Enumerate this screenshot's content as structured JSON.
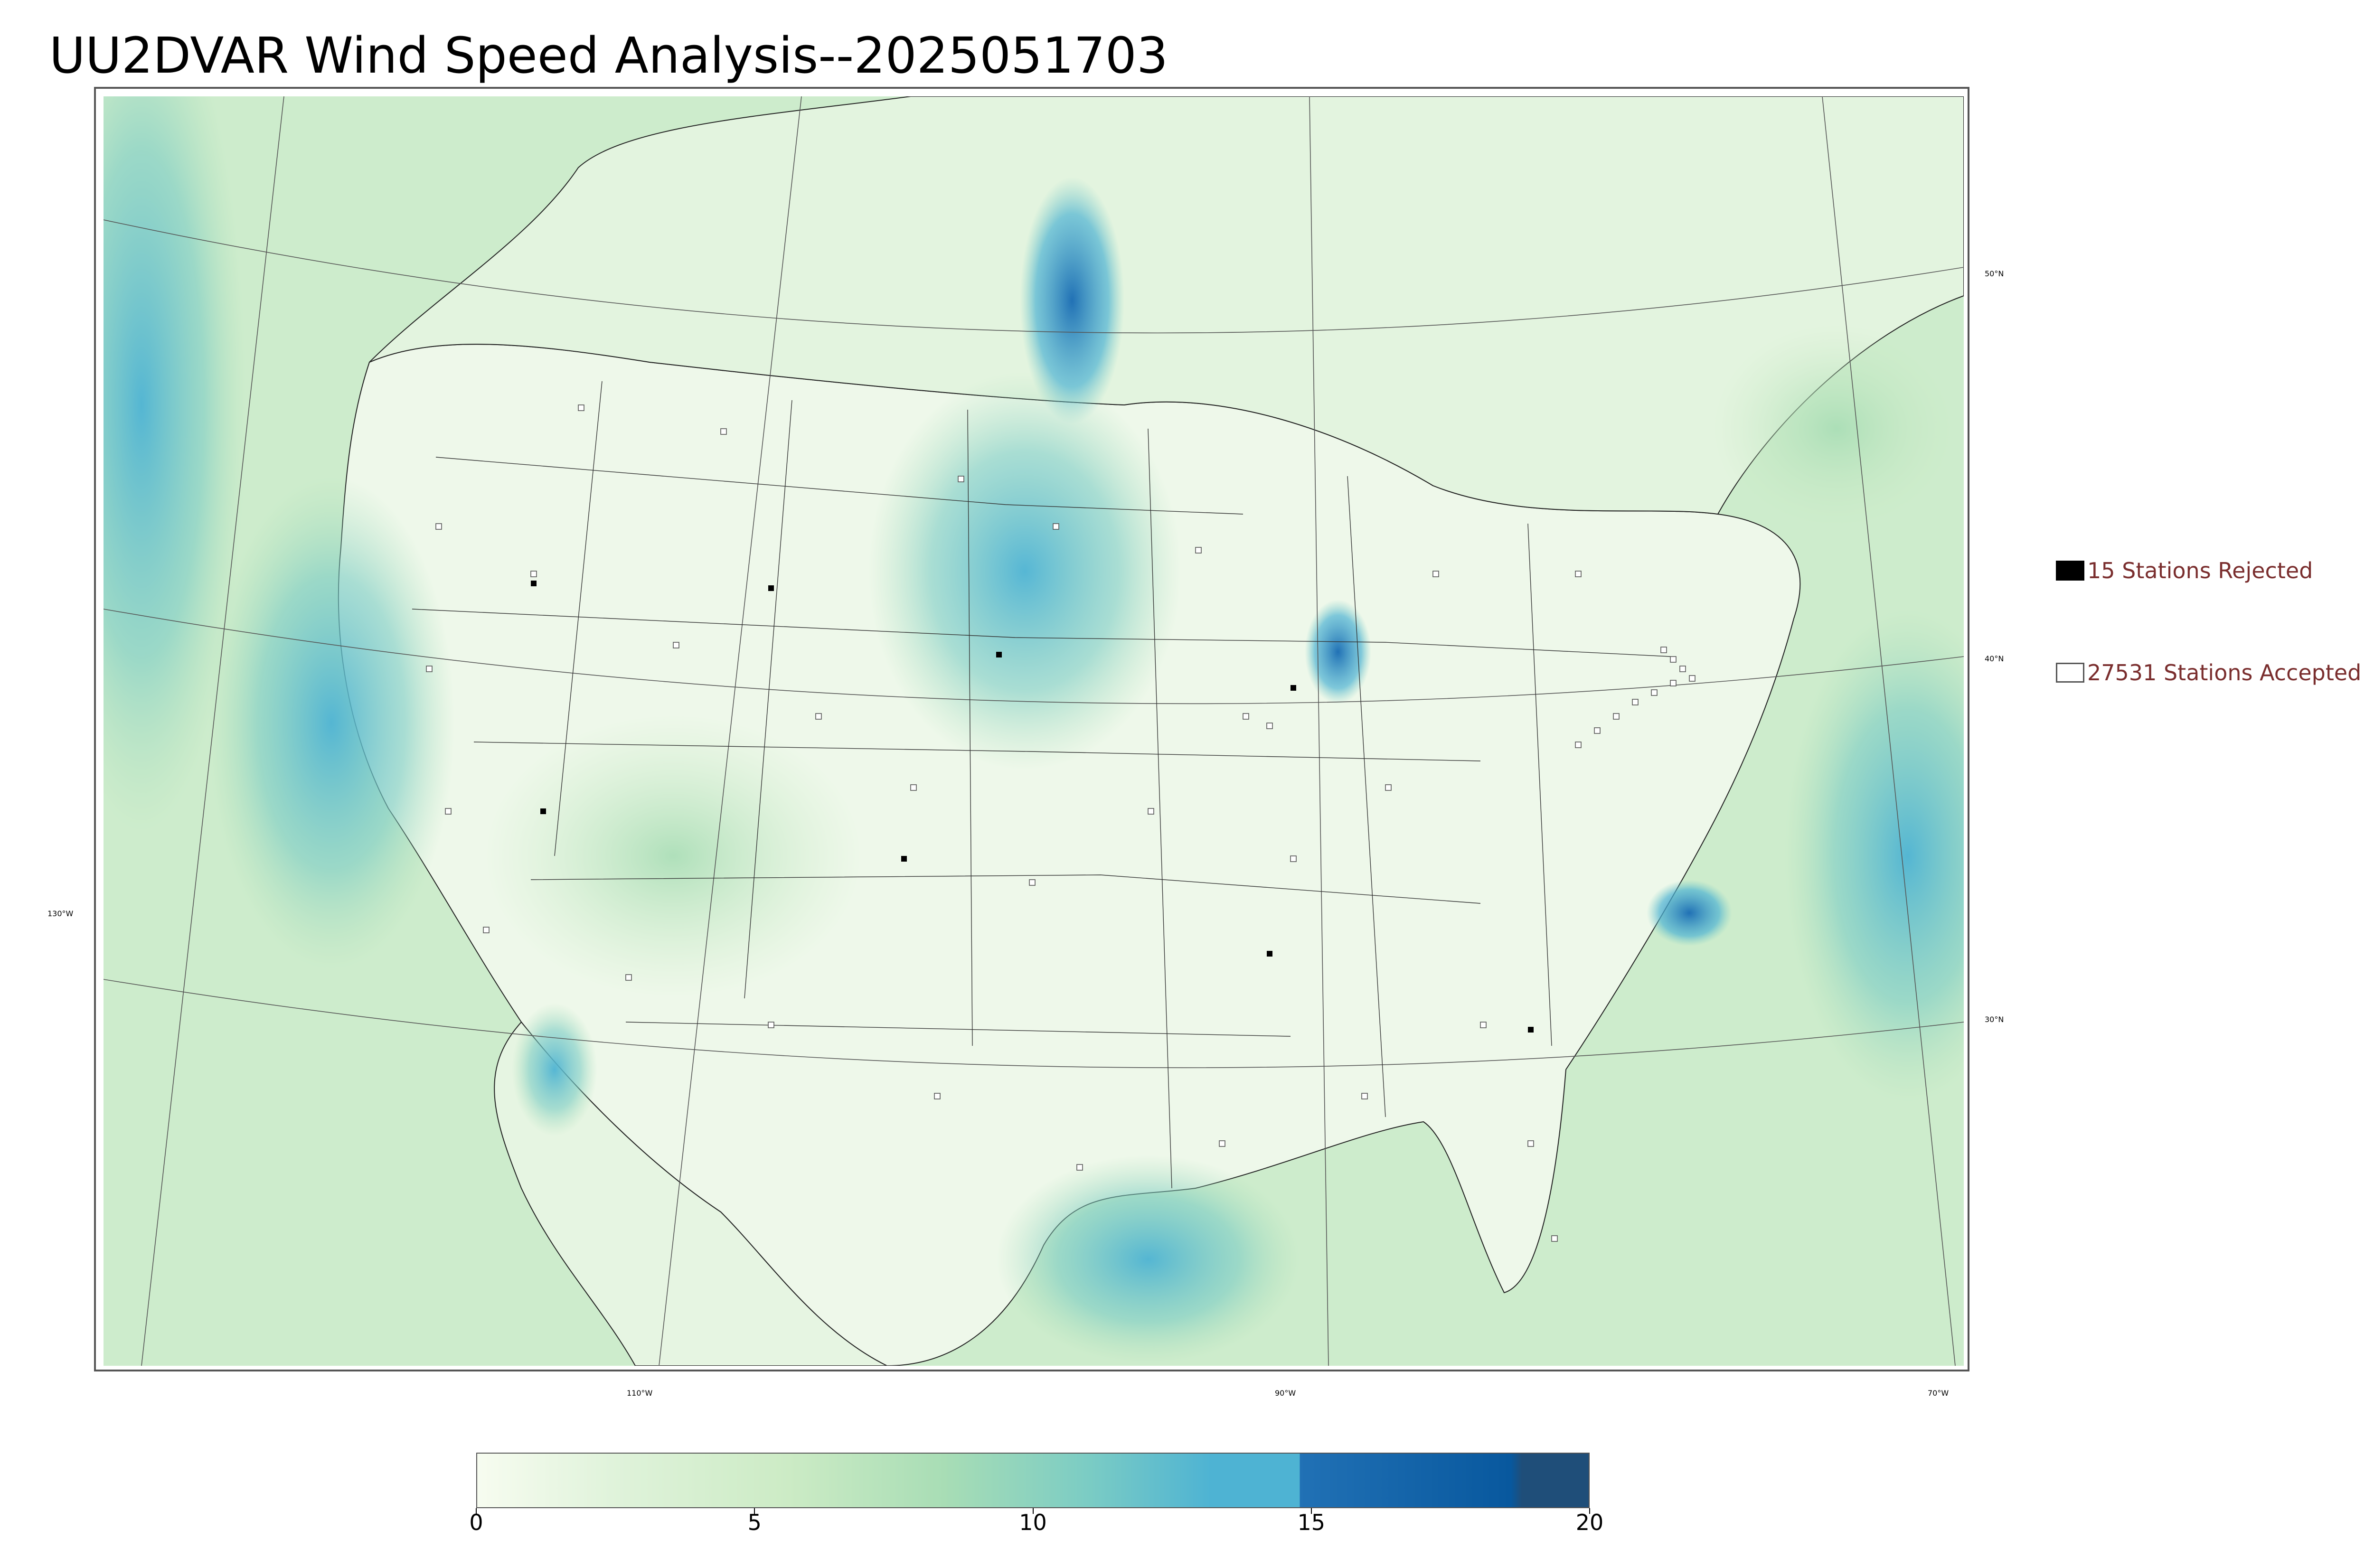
{
  "title": "UU2DVAR Wind Speed Analysis--2025051703",
  "map": {
    "lat_labels": [
      "50°N",
      "40°N",
      "30°N"
    ],
    "lon_labels_bottom": [
      "110°W",
      "90°W",
      "70°W"
    ],
    "lon_label_left": "130°W"
  },
  "legend": {
    "rejected": {
      "label": "15 Stations Rejected",
      "count": 15,
      "color": "#000000"
    },
    "accepted": {
      "label": "27531 Stations Accepted",
      "count": 27531,
      "color": "#ffffff"
    }
  },
  "colorbar": {
    "ticks": [
      "0",
      "5",
      "10",
      "15",
      "20"
    ],
    "range": [
      0,
      20
    ],
    "colors": [
      "#f7fcf0",
      "#e0f3db",
      "#ccebc5",
      "#a8ddb5",
      "#7bccc4",
      "#4eb3d3",
      "#2171b5",
      "#08589e",
      "#1f4e79"
    ]
  },
  "colors": {
    "land_fill": "#e9f6e6",
    "ocean_fill": "#cdeccc",
    "strong_wind": "#4eb3d3",
    "legend_text": "#7a2e2e"
  }
}
